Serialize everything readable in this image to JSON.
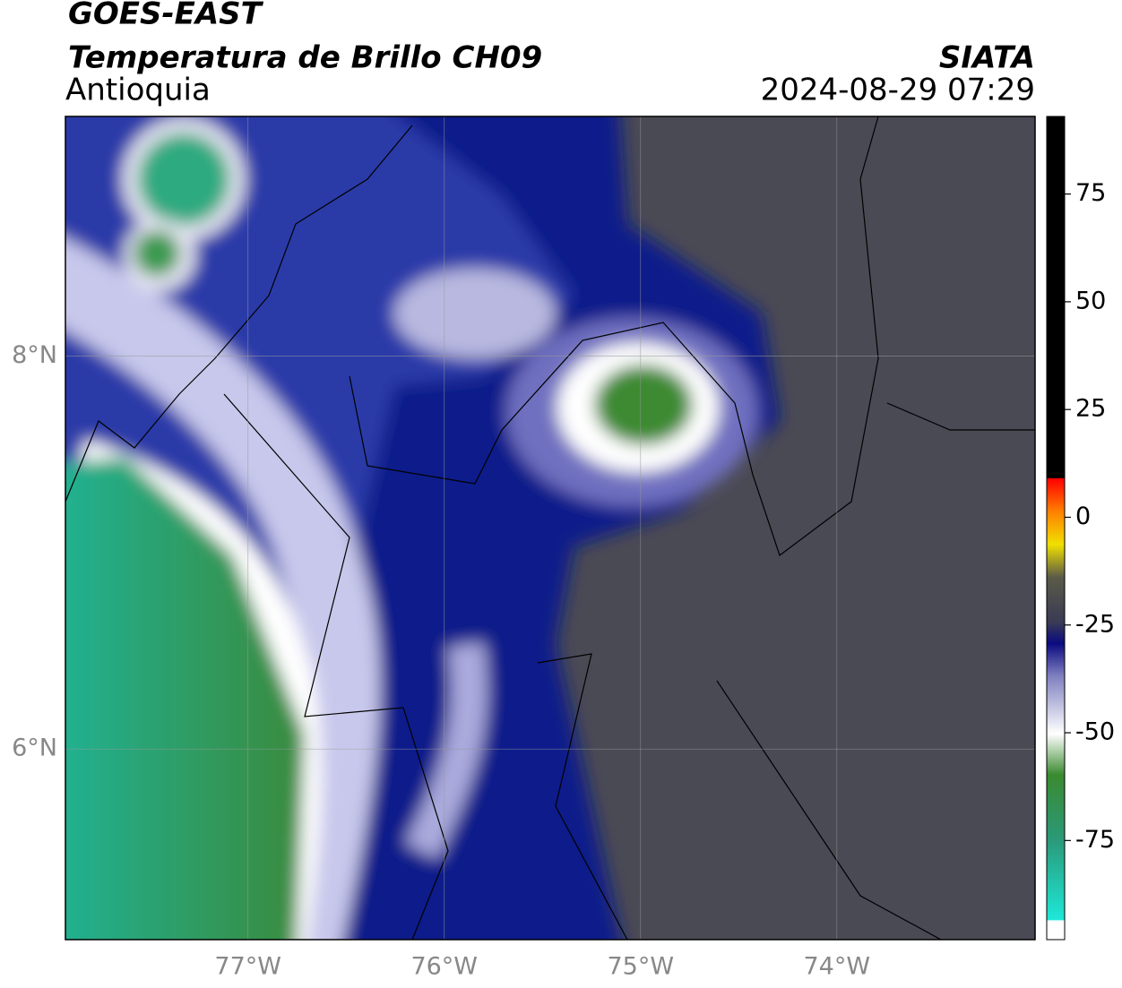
{
  "header": {
    "line1": "GOES-EAST",
    "line2": "Temperatura de Brillo CH09",
    "region": "Antioquia",
    "source": "SIATA",
    "datetime": "2024-08-29 07:29"
  },
  "map": {
    "xlim": [
      -77.93,
      -72.99
    ],
    "ylim": [
      5.03,
      9.22
    ],
    "xticks": [
      {
        "value": -77,
        "label": "77°W"
      },
      {
        "value": -76,
        "label": "76°W"
      },
      {
        "value": -75,
        "label": "75°W"
      },
      {
        "value": -74,
        "label": "74°W"
      }
    ],
    "yticks": [
      {
        "value": 8,
        "label": "8°N"
      },
      {
        "value": 6,
        "label": "6°N"
      }
    ]
  },
  "colorbar": {
    "lim": [
      -98,
      93
    ],
    "ticks": [
      75,
      50,
      25,
      0,
      -25,
      -50,
      -75
    ]
  }
}
